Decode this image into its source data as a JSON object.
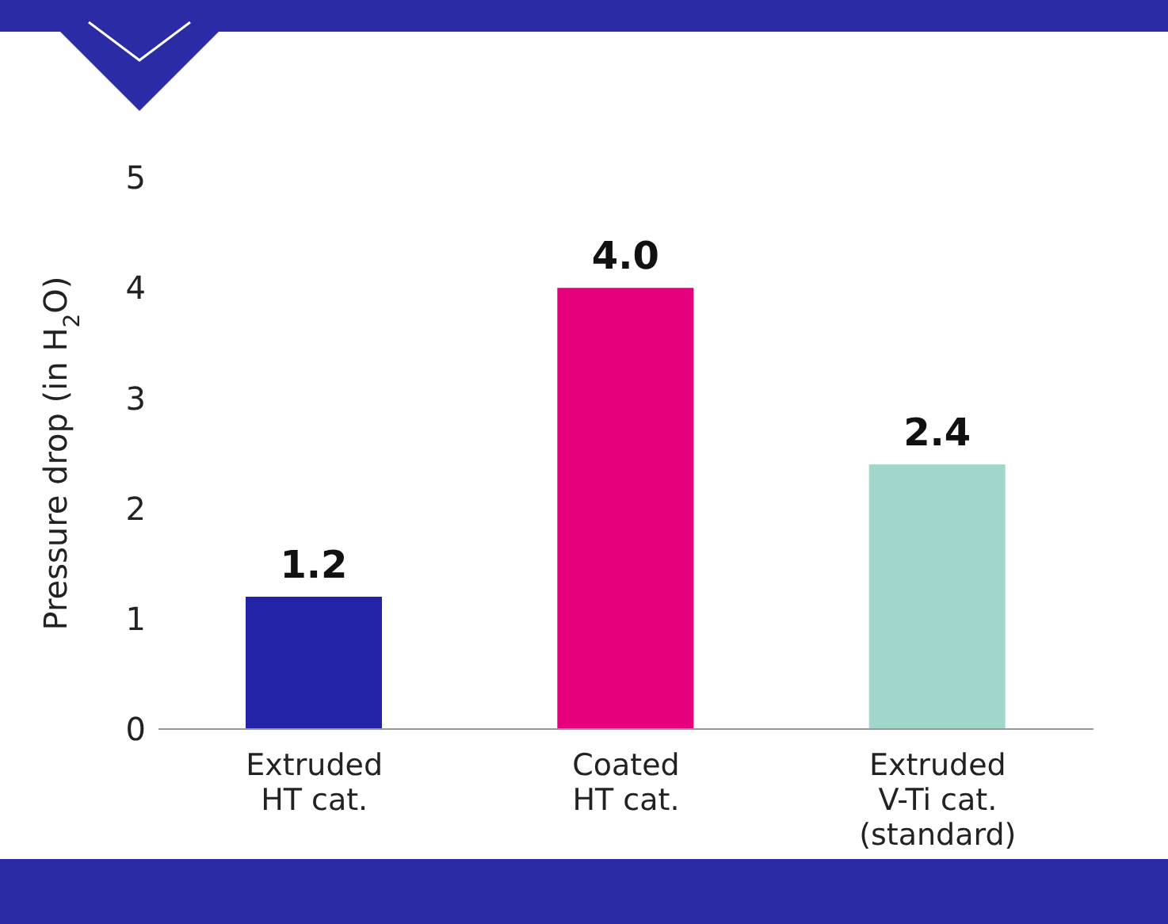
{
  "chart_data": {
    "type": "bar",
    "ylabel": "Pressure drop (in H$_{2}$O)",
    "categories": [
      "Extruded\nHT cat.",
      "Coated\nHT cat.",
      "Extruded\nV-Ti cat.\n(standard)"
    ],
    "values": [
      1.2,
      4.0,
      2.4
    ],
    "colors": [
      "#2323a8",
      "#e6007e",
      "#a0d6cc"
    ],
    "ylim": [
      0,
      5
    ],
    "yticks": [
      0,
      1,
      2,
      3,
      4,
      5
    ],
    "grid": false,
    "value_labels": [
      "1.2",
      "4.0",
      "2.4"
    ]
  }
}
